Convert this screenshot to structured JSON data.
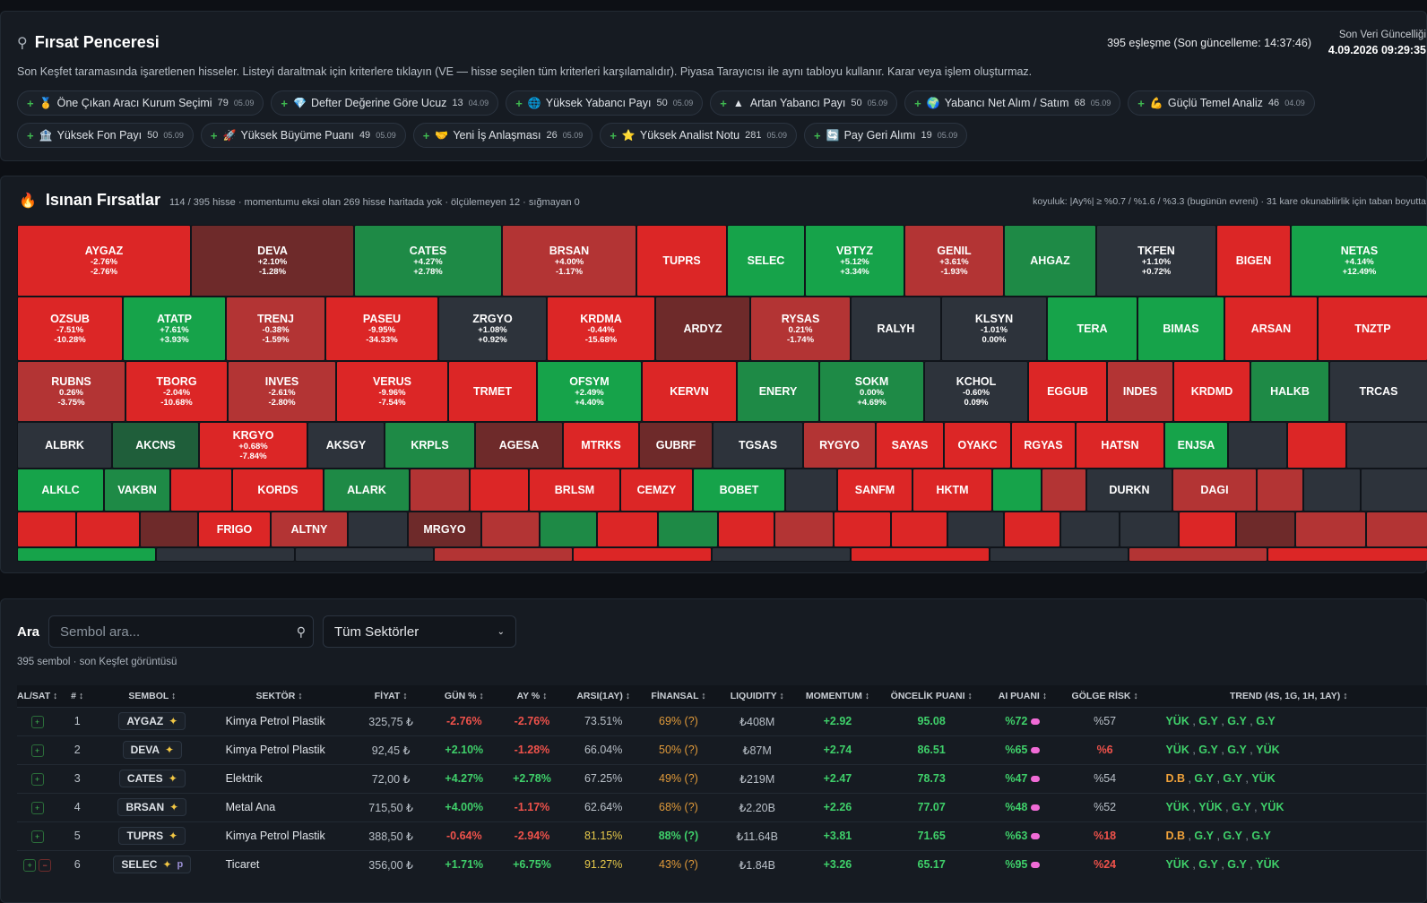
{
  "header": {
    "icon": "telescope-icon",
    "title": "Fırsat Penceresi",
    "subtitle": "Son Keşfet taramasında işaretlenen hisseler. Listeyi daraltmak için kriterlere tıklayın (VE — hisse seçilen tüm kriterleri karşılamalıdır). Piyasa Tarayıcısı ile aynı tabloyu kullanır. Karar veya işlem oluşturmaz.",
    "match_info": "395 eşleşme (Son güncelleme: 14:37:46)",
    "last_update_label": "Son Veri Güncelliği",
    "last_update_value": "4.09.2026 09:29:35"
  },
  "chips": [
    {
      "icon": "🥇",
      "label": "Öne Çıkan Aracı Kurum Seçimi",
      "count": "79",
      "date": "05.09"
    },
    {
      "icon": "💎",
      "label": "Defter Değerine Göre Ucuz",
      "count": "13",
      "date": "04.09"
    },
    {
      "icon": "🌐",
      "label": "Yüksek Yabancı Payı",
      "count": "50",
      "date": "05.09"
    },
    {
      "icon": "▲",
      "label": "Artan Yabancı Payı",
      "count": "50",
      "date": "05.09"
    },
    {
      "icon": "🌍",
      "label": "Yabancı Net Alım / Satım",
      "count": "68",
      "date": "05.09"
    },
    {
      "icon": "💪",
      "label": "Güçlü Temel Analiz",
      "count": "46",
      "date": "04.09"
    },
    {
      "icon": "🏦",
      "label": "Yüksek Fon Payı",
      "count": "50",
      "date": "05.09"
    },
    {
      "icon": "🚀",
      "label": "Yüksek Büyüme Puanı",
      "count": "49",
      "date": "05.09"
    },
    {
      "icon": "🤝",
      "label": "Yeni İş Anlaşması",
      "count": "26",
      "date": "05.09"
    },
    {
      "icon": "⭐",
      "label": "Yüksek Analist Notu",
      "count": "281",
      "date": "05.09"
    },
    {
      "icon": "🔄",
      "label": "Pay Geri Alımı",
      "count": "19",
      "date": "05.09"
    }
  ],
  "heat": {
    "icon": "fire-icon",
    "title": "Isınan Fırsatlar",
    "summary": "114 / 395 hisse · momentumu eksi olan 269 hisse haritada yok · ölçülemeyen 12 · sığmayan 0",
    "legend_note": "koyuluk: |Ay%| ≥ %0.7 / %1.6 / %3.3 (bugünün evreni) · 31 kare okunabilirlik için taban boyutta",
    "colors": {
      "red": "#dc2626",
      "red_mid": "#b33434",
      "red_dark": "#6e2a2a",
      "green": "#16a34a",
      "green_mid": "#1e8a46",
      "green_dark": "#1f5e3a",
      "gray": "#2d333b"
    },
    "rows": [
      [
        {
          "s": "AYGAZ",
          "a": "-2.76%",
          "b": "-2.76%",
          "c": "red"
        },
        {
          "s": "DEVA",
          "a": "+2.10%",
          "b": "-1.28%",
          "c": "red_dark"
        },
        {
          "s": "CATES",
          "a": "+4.27%",
          "b": "+2.78%",
          "c": "green_mid"
        },
        {
          "s": "BRSAN",
          "a": "+4.00%",
          "b": "-1.17%",
          "c": "red_mid"
        },
        {
          "s": "TUPRS",
          "a": "",
          "b": "",
          "c": "red"
        },
        {
          "s": "SELEC",
          "a": "",
          "b": "",
          "c": "green"
        },
        {
          "s": "VBTYZ",
          "a": "+5.12%",
          "b": "+3.34%",
          "c": "green"
        },
        {
          "s": "GENIL",
          "a": "+3.61%",
          "b": "-1.93%",
          "c": "red_mid"
        },
        {
          "s": "AHGAZ",
          "a": "",
          "b": "",
          "c": "green_mid"
        },
        {
          "s": "TKFEN",
          "a": "+1.10%",
          "b": "+0.72%",
          "c": "gray"
        },
        {
          "s": "BIGEN",
          "a": "",
          "b": "",
          "c": "red"
        },
        {
          "s": "NETAS",
          "a": "+4.14%",
          "b": "+12.49%",
          "c": "green"
        }
      ],
      [
        {
          "s": "OZSUB",
          "a": "-7.51%",
          "b": "-10.28%",
          "c": "red"
        },
        {
          "s": "ATATP",
          "a": "+7.61%",
          "b": "+3.93%",
          "c": "green"
        },
        {
          "s": "TRENJ",
          "a": "-0.38%",
          "b": "-1.59%",
          "c": "red_mid"
        },
        {
          "s": "PASEU",
          "a": "-9.95%",
          "b": "-34.33%",
          "c": "red"
        },
        {
          "s": "ZRGYO",
          "a": "+1.08%",
          "b": "+0.92%",
          "c": "gray"
        },
        {
          "s": "KRDMA",
          "a": "-0.44%",
          "b": "-15.68%",
          "c": "red"
        },
        {
          "s": "ARDYZ",
          "a": "",
          "b": "",
          "c": "red_dark"
        },
        {
          "s": "RYSAS",
          "a": "0.21%",
          "b": "-1.74%",
          "c": "red_mid"
        },
        {
          "s": "RALYH",
          "a": "",
          "b": "",
          "c": "gray"
        },
        {
          "s": "KLSYN",
          "a": "-1.01%",
          "b": "0.00%",
          "c": "gray"
        },
        {
          "s": "TERA",
          "a": "",
          "b": "",
          "c": "green"
        },
        {
          "s": "BIMAS",
          "a": "",
          "b": "",
          "c": "green"
        },
        {
          "s": "ARSAN",
          "a": "",
          "b": "",
          "c": "red"
        },
        {
          "s": "TNZTP",
          "a": "",
          "b": "",
          "c": "red"
        }
      ],
      [
        {
          "s": "RUBNS",
          "a": "0.26%",
          "b": "-3.75%",
          "c": "red_mid"
        },
        {
          "s": "TBORG",
          "a": "-2.04%",
          "b": "-10.68%",
          "c": "red"
        },
        {
          "s": "INVES",
          "a": "-2.61%",
          "b": "-2.80%",
          "c": "red_mid"
        },
        {
          "s": "VERUS",
          "a": "-9.96%",
          "b": "-7.54%",
          "c": "red"
        },
        {
          "s": "TRMET",
          "a": "",
          "b": "",
          "c": "red"
        },
        {
          "s": "OFSYM",
          "a": "+2.49%",
          "b": "+4.40%",
          "c": "green"
        },
        {
          "s": "KERVN",
          "a": "",
          "b": "",
          "c": "red"
        },
        {
          "s": "ENERY",
          "a": "",
          "b": "",
          "c": "green_mid"
        },
        {
          "s": "SOKM",
          "a": "0.00%",
          "b": "+4.69%",
          "c": "green_mid"
        },
        {
          "s": "KCHOL",
          "a": "-0.60%",
          "b": "0.09%",
          "c": "gray"
        },
        {
          "s": "EGGUB",
          "a": "",
          "b": "",
          "c": "red"
        },
        {
          "s": "INDES",
          "a": "",
          "b": "",
          "c": "red_mid"
        },
        {
          "s": "KRDMD",
          "a": "",
          "b": "",
          "c": "red"
        },
        {
          "s": "HALKB",
          "a": "",
          "b": "",
          "c": "green_mid"
        },
        {
          "s": "TRCAS",
          "a": "",
          "b": "",
          "c": "gray"
        }
      ],
      [
        {
          "s": "ALBRK",
          "a": "",
          "b": "",
          "c": "gray"
        },
        {
          "s": "AKCNS",
          "a": "",
          "b": "",
          "c": "green_dark"
        },
        {
          "s": "KRGYO",
          "a": "+0.68%",
          "b": "-7.84%",
          "c": "red"
        },
        {
          "s": "AKSGY",
          "a": "",
          "b": "",
          "c": "gray"
        },
        {
          "s": "KRPLS",
          "a": "",
          "b": "",
          "c": "green_mid"
        },
        {
          "s": "AGESA",
          "a": "",
          "b": "",
          "c": "red_dark"
        },
        {
          "s": "MTRKS",
          "a": "",
          "b": "",
          "c": "red"
        },
        {
          "s": "GUBRF",
          "a": "",
          "b": "",
          "c": "red_dark"
        },
        {
          "s": "TGSAS",
          "a": "",
          "b": "",
          "c": "gray"
        },
        {
          "s": "RYGYO",
          "a": "",
          "b": "",
          "c": "red_mid"
        },
        {
          "s": "SAYAS",
          "a": "",
          "b": "",
          "c": "red"
        },
        {
          "s": "OYAKC",
          "a": "",
          "b": "",
          "c": "red"
        },
        {
          "s": "RGYAS",
          "a": "",
          "b": "",
          "c": "red"
        },
        {
          "s": "HATSN",
          "a": "",
          "b": "",
          "c": "red"
        },
        {
          "s": "ENJSA",
          "a": "",
          "b": "",
          "c": "green"
        },
        {
          "s": "",
          "a": "",
          "b": "",
          "c": "gray"
        },
        {
          "s": "",
          "a": "",
          "b": "",
          "c": "red"
        },
        {
          "s": "",
          "a": "",
          "b": "",
          "c": "gray"
        }
      ],
      [
        {
          "s": "ALKLC",
          "a": "",
          "b": "",
          "c": "green"
        },
        {
          "s": "VAKBN",
          "a": "",
          "b": "",
          "c": "green_mid"
        },
        {
          "s": "",
          "a": "",
          "b": "",
          "c": "red"
        },
        {
          "s": "KORDS",
          "a": "",
          "b": "",
          "c": "red"
        },
        {
          "s": "ALARK",
          "a": "",
          "b": "",
          "c": "green_mid"
        },
        {
          "s": "",
          "a": "",
          "b": "",
          "c": "red_mid"
        },
        {
          "s": "",
          "a": "",
          "b": "",
          "c": "red"
        },
        {
          "s": "BRLSM",
          "a": "",
          "b": "",
          "c": "red"
        },
        {
          "s": "CEMZY",
          "a": "",
          "b": "",
          "c": "red"
        },
        {
          "s": "BOBET",
          "a": "",
          "b": "",
          "c": "green"
        },
        {
          "s": "",
          "a": "",
          "b": "",
          "c": "gray"
        },
        {
          "s": "SANFM",
          "a": "",
          "b": "",
          "c": "red"
        },
        {
          "s": "HKTM",
          "a": "",
          "b": "",
          "c": "red"
        },
        {
          "s": "",
          "a": "",
          "b": "",
          "c": "green"
        },
        {
          "s": "",
          "a": "",
          "b": "",
          "c": "red_mid"
        },
        {
          "s": "DURKN",
          "a": "",
          "b": "",
          "c": "gray"
        },
        {
          "s": "DAGI",
          "a": "",
          "b": "",
          "c": "red_mid"
        },
        {
          "s": "",
          "a": "",
          "b": "",
          "c": "red_mid"
        },
        {
          "s": "",
          "a": "",
          "b": "",
          "c": "gray"
        },
        {
          "s": "",
          "a": "",
          "b": "",
          "c": "gray"
        }
      ],
      [
        {
          "s": "",
          "a": "",
          "b": "",
          "c": "red"
        },
        {
          "s": "",
          "a": "",
          "b": "",
          "c": "red"
        },
        {
          "s": "",
          "a": "",
          "b": "",
          "c": "red_dark"
        },
        {
          "s": "FRIGO",
          "a": "",
          "b": "",
          "c": "red"
        },
        {
          "s": "ALTNY",
          "a": "",
          "b": "",
          "c": "red_mid"
        },
        {
          "s": "",
          "a": "",
          "b": "",
          "c": "gray"
        },
        {
          "s": "MRGYO",
          "a": "",
          "b": "",
          "c": "red_dark"
        },
        {
          "s": "",
          "a": "",
          "b": "",
          "c": "red_mid"
        },
        {
          "s": "",
          "a": "",
          "b": "",
          "c": "green_mid"
        },
        {
          "s": "",
          "a": "",
          "b": "",
          "c": "red"
        },
        {
          "s": "",
          "a": "",
          "b": "",
          "c": "green_mid"
        },
        {
          "s": "",
          "a": "",
          "b": "",
          "c": "red"
        },
        {
          "s": "",
          "a": "",
          "b": "",
          "c": "red_mid"
        },
        {
          "s": "",
          "a": "",
          "b": "",
          "c": "red"
        },
        {
          "s": "",
          "a": "",
          "b": "",
          "c": "red"
        },
        {
          "s": "",
          "a": "",
          "b": "",
          "c": "gray"
        },
        {
          "s": "",
          "a": "",
          "b": "",
          "c": "red"
        },
        {
          "s": "",
          "a": "",
          "b": "",
          "c": "gray"
        },
        {
          "s": "",
          "a": "",
          "b": "",
          "c": "gray"
        },
        {
          "s": "",
          "a": "",
          "b": "",
          "c": "red"
        },
        {
          "s": "",
          "a": "",
          "b": "",
          "c": "red_dark"
        },
        {
          "s": "",
          "a": "",
          "b": "",
          "c": "red_mid"
        },
        {
          "s": "",
          "a": "",
          "b": "",
          "c": "red_mid"
        }
      ],
      [
        {
          "s": "",
          "a": "",
          "b": "",
          "c": "green"
        },
        {
          "s": "",
          "a": "",
          "b": "",
          "c": "gray"
        },
        {
          "s": "",
          "a": "",
          "b": "",
          "c": "gray"
        },
        {
          "s": "",
          "a": "",
          "b": "",
          "c": "red_mid"
        },
        {
          "s": "",
          "a": "",
          "b": "",
          "c": "red"
        },
        {
          "s": "",
          "a": "",
          "b": "",
          "c": "gray"
        },
        {
          "s": "",
          "a": "",
          "b": "",
          "c": "red"
        },
        {
          "s": "",
          "a": "",
          "b": "",
          "c": "gray"
        },
        {
          "s": "",
          "a": "",
          "b": "",
          "c": "red_mid"
        },
        {
          "s": "",
          "a": "",
          "b": "",
          "c": "red"
        }
      ]
    ]
  },
  "search": {
    "label": "Ara",
    "placeholder": "Sembol ara...",
    "search_icon": "search-icon",
    "sector_select": "Tüm Sektörler",
    "count_line": "395 sembol · son Keşfet görüntüsü"
  },
  "table": {
    "headers": [
      "AL/SAT",
      "#",
      "SEMBOL",
      "SEKTÖR",
      "FİYAT",
      "GÜN %",
      "AY %",
      "ARSI(1AY)",
      "FİNANSAL",
      "LIQUIDITY",
      "MOMENTUM",
      "ÖNCELİK PUANI",
      "AI PUANI",
      "GÖLGE RİSK",
      "TREND (4S, 1G, 1H, 1AY)"
    ],
    "rows": [
      {
        "n": "1",
        "sym": "AYGAZ",
        "sector": "Kimya Petrol Plastik",
        "price": "325,75 ₺",
        "day": "-2.76%",
        "month": "-2.76%",
        "arsi": "73.51%",
        "fin": "69% (?)",
        "liq": "₺408M",
        "mom": "+2.92",
        "prio": "95.08",
        "ai": "%72",
        "shadow": "%57",
        "trend": [
          "YÜK",
          "G.Y",
          "G.Y",
          "G.Y"
        ]
      },
      {
        "n": "2",
        "sym": "DEVA",
        "sector": "Kimya Petrol Plastik",
        "price": "92,45 ₺",
        "day": "+2.10%",
        "month": "-1.28%",
        "arsi": "66.04%",
        "fin": "50% (?)",
        "liq": "₺87M",
        "mom": "+2.74",
        "prio": "86.51",
        "ai": "%65",
        "shadow": "%6",
        "trend": [
          "YÜK",
          "G.Y",
          "G.Y",
          "YÜK"
        ]
      },
      {
        "n": "3",
        "sym": "CATES",
        "sector": "Elektrik",
        "price": "72,00 ₺",
        "day": "+4.27%",
        "month": "+2.78%",
        "arsi": "67.25%",
        "fin": "49% (?)",
        "liq": "₺219M",
        "mom": "+2.47",
        "prio": "78.73",
        "ai": "%47",
        "shadow": "%54",
        "trend": [
          "D.B",
          "G.Y",
          "G.Y",
          "YÜK"
        ]
      },
      {
        "n": "4",
        "sym": "BRSAN",
        "sector": "Metal Ana",
        "price": "715,50 ₺",
        "day": "+4.00%",
        "month": "-1.17%",
        "arsi": "62.64%",
        "fin": "68% (?)",
        "liq": "₺2.20B",
        "mom": "+2.26",
        "prio": "77.07",
        "ai": "%48",
        "shadow": "%52",
        "trend": [
          "YÜK",
          "YÜK",
          "G.Y",
          "YÜK"
        ]
      },
      {
        "n": "5",
        "sym": "TUPRS",
        "sector": "Kimya Petrol Plastik",
        "price": "388,50 ₺",
        "day": "-0.64%",
        "month": "-2.94%",
        "arsi": "81.15%",
        "fin": "88% (?)",
        "liq": "₺11.64B",
        "mom": "+3.81",
        "prio": "71.65",
        "ai": "%63",
        "shadow": "%18",
        "trend": [
          "D.B",
          "G.Y",
          "G.Y",
          "G.Y"
        ]
      },
      {
        "n": "6",
        "sym": "SELEC",
        "sector": "Ticaret",
        "price": "356,00 ₺",
        "day": "+1.71%",
        "month": "+6.75%",
        "arsi": "91.27%",
        "fin": "43% (?)",
        "liq": "₺1.84B",
        "mom": "+3.26",
        "prio": "65.17",
        "ai": "%95",
        "shadow": "%24",
        "trend": [
          "YÜK",
          "G.Y",
          "G.Y",
          "YÜK"
        ]
      }
    ]
  }
}
